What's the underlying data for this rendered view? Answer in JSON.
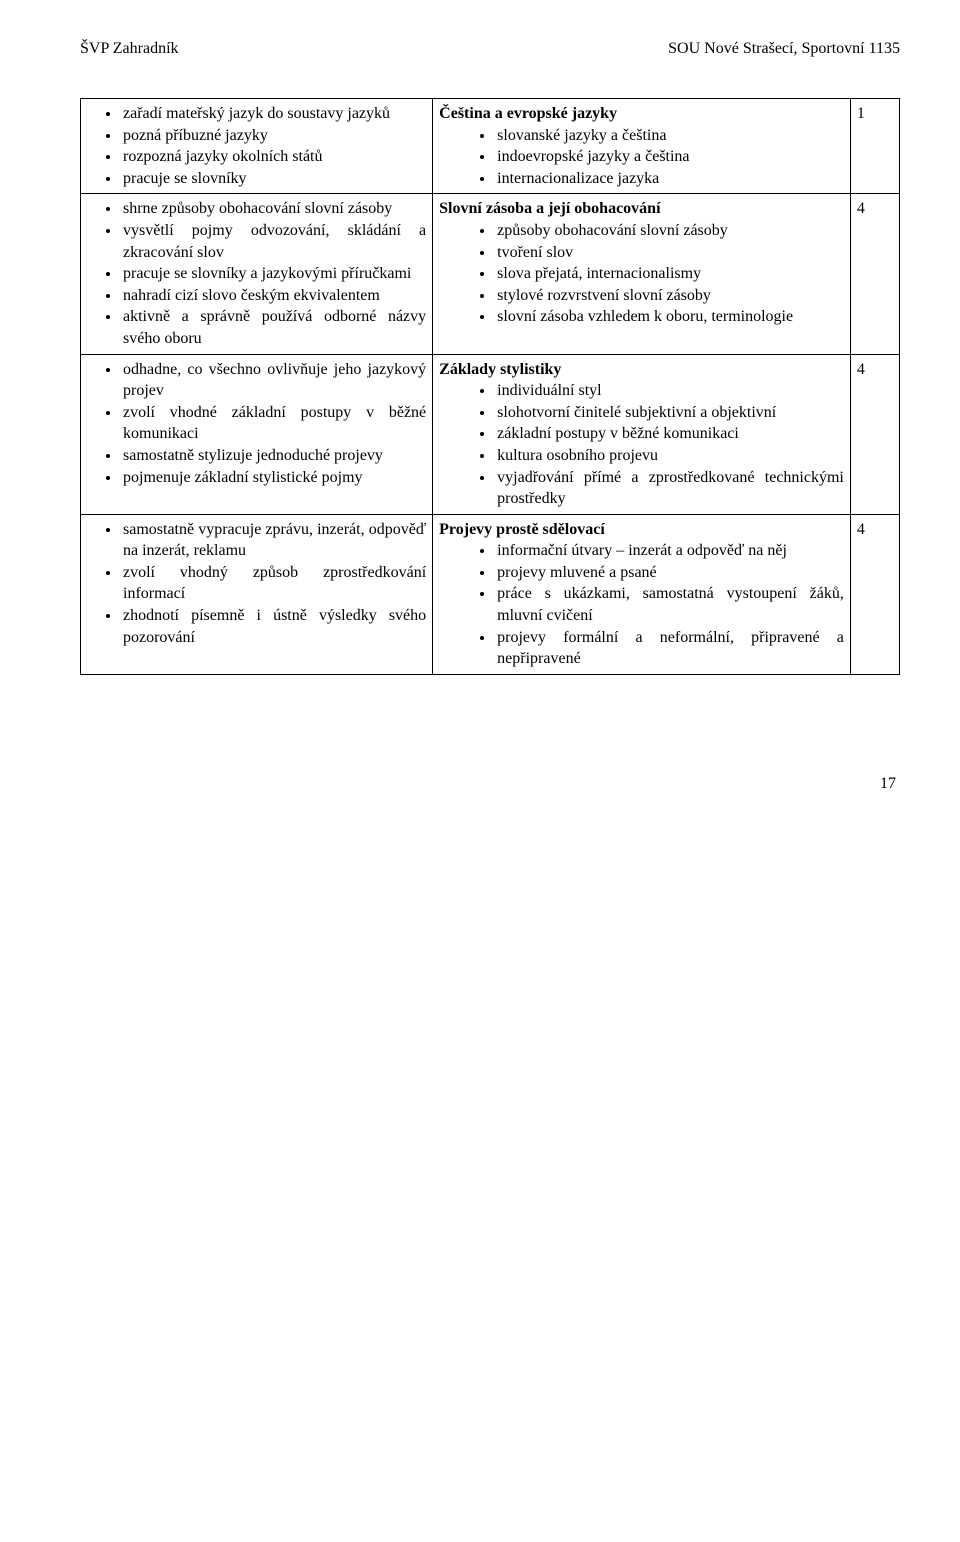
{
  "header": {
    "left": "ŠVP Zahradník",
    "right": "SOU Nové Strašecí, Sportovní 1135"
  },
  "rows": [
    {
      "left": [
        "zařadí mateřský jazyk do soustavy jazyků",
        "pozná příbuzné jazyky",
        "rozpozná jazyky okolních států",
        "pracuje se slovníky"
      ],
      "rightTitle": "Čeština a evropské jazyky",
      "right": [
        "slovanské jazyky a čeština",
        "indoevropské jazyky a čeština",
        "internacionalizace jazyka"
      ],
      "num": "1"
    },
    {
      "left": [
        "shrne způsoby obohacování slovní zásoby",
        "vysvětlí pojmy odvozování, skládání a zkracování slov",
        "pracuje se slovníky a jazykovými příručkami",
        "nahradí cizí slovo českým ekvivalentem",
        "aktivně a správně používá odborné názvy svého oboru"
      ],
      "rightTitle": "Slovní zásoba a její obohacování",
      "right": [
        "způsoby obohacování slovní zásoby",
        "tvoření slov",
        "slova přejatá, internacionalismy",
        "stylové rozvrstvení slovní zásoby",
        "slovní zásoba vzhledem k oboru, terminologie"
      ],
      "num": "4"
    },
    {
      "left": [
        "odhadne, co všechno ovlivňuje jeho jazykový projev",
        "zvolí vhodné základní postupy v běžné komunikaci",
        "samostatně stylizuje jednoduché projevy",
        "pojmenuje základní stylistické pojmy"
      ],
      "rightTitle": "Základy stylistiky",
      "right": [
        "individuální styl",
        "slohotvorní činitelé subjektivní a objektivní",
        "základní postupy v běžné komunikaci",
        "kultura osobního projevu",
        "vyjadřování přímé a zprostředkované technickými prostředky"
      ],
      "num": "4"
    },
    {
      "left": [
        "samostatně vypracuje zprávu, inzerát, odpověď na inzerát, reklamu",
        "zvolí vhodný způsob zprostředkování informací",
        "zhodnotí písemně i ústně výsledky svého pozorování"
      ],
      "rightTitle": "Projevy prostě sdělovací",
      "right": [
        "informační útvary – inzerát a odpověď na něj",
        "projevy mluvené a psané",
        "práce s ukázkami, samostatná vystoupení žáků, mluvní cvičení",
        "projevy formální a neformální, připravené a nepřipravené"
      ],
      "num": "4"
    }
  ],
  "pageNumber": "17"
}
